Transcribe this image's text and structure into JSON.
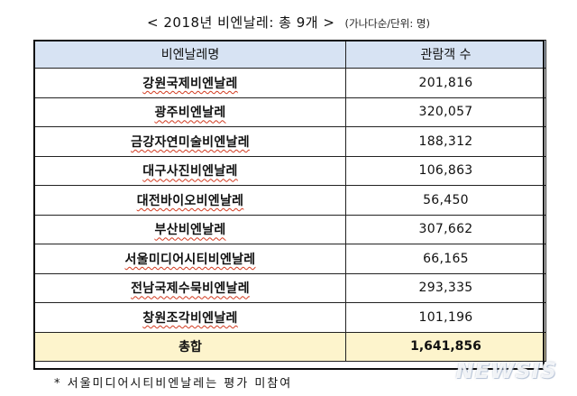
{
  "title": {
    "main": "< 2018년 비엔날레: 총 9개 >",
    "unit": "(가나다순/단위: 명)"
  },
  "table": {
    "headers": [
      "비엔날레명",
      "관람객 수"
    ],
    "rows": [
      {
        "name": "강원국제비엔날레",
        "visitors": "201,816"
      },
      {
        "name": "광주비엔날레",
        "visitors": "320,057"
      },
      {
        "name": "금강자연미술비엔날레",
        "visitors": "188,312"
      },
      {
        "name": "대구사진비엔날레",
        "visitors": "106,863"
      },
      {
        "name": "대전바이오비엔날레",
        "visitors": "56,450"
      },
      {
        "name": "부산비엔날레",
        "visitors": "307,662"
      },
      {
        "name": "서울미디어시티비엔날레",
        "visitors": "66,165"
      },
      {
        "name": "전남국제수묵비엔날레",
        "visitors": "293,335"
      },
      {
        "name": "창원조각비엔날레",
        "visitors": "101,196"
      }
    ],
    "total": {
      "label": "총합",
      "visitors": "1,641,856"
    }
  },
  "footnote": "* 서울미디어시티비엔날레는 평가 미참여",
  "watermark": "NEWSIS",
  "colors": {
    "header_bg": "#d7e3f3",
    "total_bg": "#fdf4cc",
    "spellcheck_underline": "#d23a1f"
  }
}
